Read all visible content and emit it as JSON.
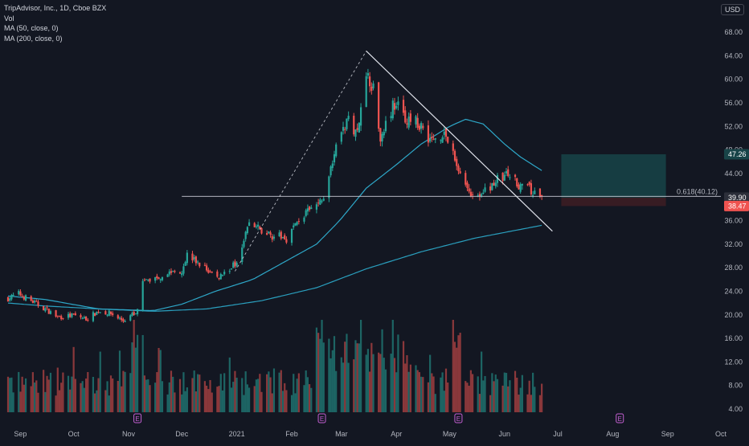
{
  "legend": {
    "title": "TripAdvisor, Inc., 1D, Cboe BZX",
    "vol": "Vol",
    "ma50": "MA (50, close, 0)",
    "ma200": "MA (200, close, 0)"
  },
  "currency": "USD",
  "colors": {
    "background": "#131722",
    "up": "#26a69a",
    "down": "#ef5350",
    "ma50": "#2ea8c9",
    "ma200": "#2a9fbe",
    "trendline": "#e0e3eb",
    "fib_line": "#c9ccd6",
    "price_tag": "#2c2f3a",
    "last_tag": "#ef5350",
    "target_zone": "#184448",
    "stop_zone": "#3c1d24"
  },
  "chart_data": {
    "type": "candlestick",
    "symbol": "TripAdvisor, Inc.",
    "interval": "1D",
    "exchange": "Cboe BZX",
    "y_axis": {
      "range": [
        4,
        72
      ],
      "ticks": [
        4.0,
        8.0,
        12.0,
        16.0,
        20.0,
        24.0,
        28.0,
        32.0,
        36.0,
        40.0,
        44.0,
        48.0,
        52.0,
        56.0,
        60.0,
        64.0,
        68.0
      ],
      "tick_labels": [
        "4.00",
        "8.00",
        "12.00",
        "16.00",
        "20.00",
        "24.00",
        "28.00",
        "32.00",
        "36.00",
        "40.00",
        "44.00",
        "48.00",
        "52.00",
        "56.00",
        "60.00",
        "64.00",
        "68.00"
      ]
    },
    "x_axis": {
      "labels": [
        {
          "label": "Sep",
          "date": "2020-09-01"
        },
        {
          "label": "Oct",
          "date": "2020-10-01"
        },
        {
          "label": "Nov",
          "date": "2020-11-01"
        },
        {
          "label": "Dec",
          "date": "2020-12-01"
        },
        {
          "label": "2021",
          "date": "2021-01-01"
        },
        {
          "label": "Feb",
          "date": "2021-02-01"
        },
        {
          "label": "Mar",
          "date": "2021-03-01"
        },
        {
          "label": "Apr",
          "date": "2021-04-01"
        },
        {
          "label": "May",
          "date": "2021-05-01"
        },
        {
          "label": "Jun",
          "date": "2021-06-01"
        },
        {
          "label": "Jul",
          "date": "2021-07-01"
        },
        {
          "label": "Aug",
          "date": "2021-08-01"
        },
        {
          "label": "Sep",
          "date": "2021-09-01"
        },
        {
          "label": "Oct",
          "date": "2021-10-01"
        }
      ],
      "start": "2020-08-25",
      "end": "2021-10-01"
    },
    "price_path": [
      [
        "2020-08-25",
        22.8
      ],
      [
        "2020-08-31",
        23.6
      ],
      [
        "2020-09-08",
        22.2
      ],
      [
        "2020-09-15",
        21.0
      ],
      [
        "2020-09-22",
        19.6
      ],
      [
        "2020-10-01",
        19.9
      ],
      [
        "2020-10-08",
        19.3
      ],
      [
        "2020-10-15",
        20.6
      ],
      [
        "2020-10-22",
        20.2
      ],
      [
        "2020-10-29",
        19.0
      ],
      [
        "2020-11-06",
        20.6
      ],
      [
        "2020-11-09",
        25.6
      ],
      [
        "2020-11-16",
        26.2
      ],
      [
        "2020-11-24",
        27.2
      ],
      [
        "2020-12-01",
        27.6
      ],
      [
        "2020-12-04",
        30.2
      ],
      [
        "2020-12-11",
        28.6
      ],
      [
        "2020-12-21",
        26.3
      ],
      [
        "2020-12-31",
        28.6
      ],
      [
        "2021-01-08",
        35.6
      ],
      [
        "2021-01-15",
        34.2
      ],
      [
        "2021-01-22",
        33.4
      ],
      [
        "2021-01-29",
        33.0
      ],
      [
        "2021-02-05",
        36.2
      ],
      [
        "2021-02-12",
        37.8
      ],
      [
        "2021-02-19",
        39.8
      ],
      [
        "2021-02-26",
        49.5
      ],
      [
        "2021-03-05",
        53.0
      ],
      [
        "2021-03-10",
        51.0
      ],
      [
        "2021-03-12",
        56.5
      ],
      [
        "2021-03-16",
        61.0
      ],
      [
        "2021-03-19",
        58.4
      ],
      [
        "2021-03-23",
        50.0
      ],
      [
        "2021-03-26",
        53.2
      ],
      [
        "2021-03-31",
        56.0
      ],
      [
        "2021-04-07",
        53.0
      ],
      [
        "2021-04-14",
        52.5
      ],
      [
        "2021-04-21",
        49.5
      ],
      [
        "2021-04-28",
        51.0
      ],
      [
        "2021-05-05",
        45.5
      ],
      [
        "2021-05-12",
        41.0
      ],
      [
        "2021-05-19",
        40.2
      ],
      [
        "2021-05-26",
        42.6
      ],
      [
        "2021-06-02",
        43.8
      ],
      [
        "2021-06-09",
        42.2
      ],
      [
        "2021-06-16",
        41.0
      ],
      [
        "2021-06-22",
        39.9
      ]
    ],
    "ma50_path": [
      [
        "2020-08-25",
        23.2
      ],
      [
        "2020-09-15",
        22.6
      ],
      [
        "2020-10-15",
        21.0
      ],
      [
        "2020-11-15",
        20.7
      ],
      [
        "2020-12-01",
        21.8
      ],
      [
        "2020-12-20",
        24.0
      ],
      [
        "2021-01-10",
        26.0
      ],
      [
        "2021-01-31",
        29.5
      ],
      [
        "2021-02-15",
        32.0
      ],
      [
        "2021-02-28",
        36.0
      ],
      [
        "2021-03-15",
        41.5
      ],
      [
        "2021-04-01",
        45.5
      ],
      [
        "2021-04-15",
        49.0
      ],
      [
        "2021-05-01",
        52.0
      ],
      [
        "2021-05-10",
        53.2
      ],
      [
        "2021-05-20",
        52.4
      ],
      [
        "2021-06-01",
        49.0
      ],
      [
        "2021-06-10",
        46.8
      ],
      [
        "2021-06-22",
        44.5
      ]
    ],
    "ma200_path": [
      [
        "2020-08-25",
        22.0
      ],
      [
        "2020-09-15",
        21.5
      ],
      [
        "2020-10-15",
        21.0
      ],
      [
        "2020-11-15",
        20.6
      ],
      [
        "2020-12-15",
        21.0
      ],
      [
        "2021-01-15",
        22.4
      ],
      [
        "2021-02-15",
        24.6
      ],
      [
        "2021-03-15",
        27.8
      ],
      [
        "2021-04-15",
        30.7
      ],
      [
        "2021-05-15",
        33.0
      ],
      [
        "2021-06-22",
        35.2
      ]
    ],
    "volume_max": 100,
    "volume_events": [
      {
        "date": "2020-11-06",
        "label": "E"
      },
      {
        "date": "2021-02-18",
        "label": "E"
      },
      {
        "date": "2021-05-06",
        "label": "E"
      },
      {
        "date": "2021-08-05",
        "label": "E"
      }
    ],
    "drawings": {
      "trendline": {
        "from": [
          "2021-03-15",
          64.8
        ],
        "to": [
          "2021-06-28",
          34.2
        ]
      },
      "dashed_leg": {
        "from": [
          "2020-12-31",
          27.4
        ],
        "to": [
          "2021-03-15",
          64.8
        ]
      },
      "fib_level": {
        "value": 40.12,
        "ratio": 0.618,
        "label": "0.618(40.12)",
        "from": "2020-12-01",
        "to": "2021-10-01"
      },
      "position": {
        "entry": 39.9,
        "target": 47.26,
        "stop": 38.47,
        "from": "2021-07-03",
        "to": "2021-08-31"
      }
    },
    "price_tags": [
      {
        "value": 47.26,
        "label": "47.26",
        "kind": "target"
      },
      {
        "value": 39.9,
        "label": "39.90",
        "kind": "entry"
      },
      {
        "value": 38.47,
        "label": "38.47",
        "kind": "last"
      }
    ],
    "grid": false,
    "legend_position": "top-left"
  }
}
